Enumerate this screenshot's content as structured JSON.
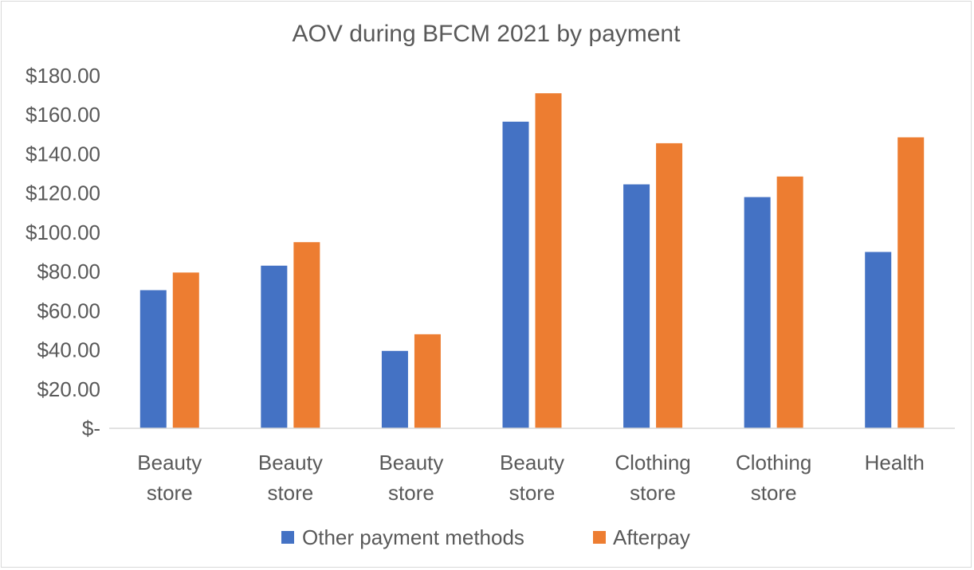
{
  "chart_data": {
    "type": "bar",
    "title": "AOV during BFCM 2021 by payment",
    "xlabel": "",
    "ylabel": "",
    "ylim": [
      0,
      180
    ],
    "yticks": [
      {
        "value": 0,
        "label": "$-"
      },
      {
        "value": 20,
        "label": "$20.00"
      },
      {
        "value": 40,
        "label": "$40.00"
      },
      {
        "value": 60,
        "label": "$60.00"
      },
      {
        "value": 80,
        "label": "$80.00"
      },
      {
        "value": 100,
        "label": "$100.00"
      },
      {
        "value": 120,
        "label": "$120.00"
      },
      {
        "value": 140,
        "label": "$140.00"
      },
      {
        "value": 160,
        "label": "$160.00"
      },
      {
        "value": 180,
        "label": "$180.00"
      }
    ],
    "categories": [
      [
        "Beauty",
        "store"
      ],
      [
        "Beauty",
        "store"
      ],
      [
        "Beauty",
        "store"
      ],
      [
        "Beauty",
        "store"
      ],
      [
        "Clothing",
        "store"
      ],
      [
        "Clothing",
        "store"
      ],
      [
        "Health"
      ]
    ],
    "series": [
      {
        "name": "Other payment methods",
        "color": "#4472c4",
        "values": [
          70.5,
          83,
          39.5,
          156.5,
          124.5,
          118,
          90
        ]
      },
      {
        "name": "Afterpay",
        "color": "#ed7d31",
        "values": [
          79.5,
          95,
          48,
          171,
          145.5,
          128.5,
          148.5
        ]
      }
    ],
    "grid": false,
    "legend": "bottom"
  }
}
